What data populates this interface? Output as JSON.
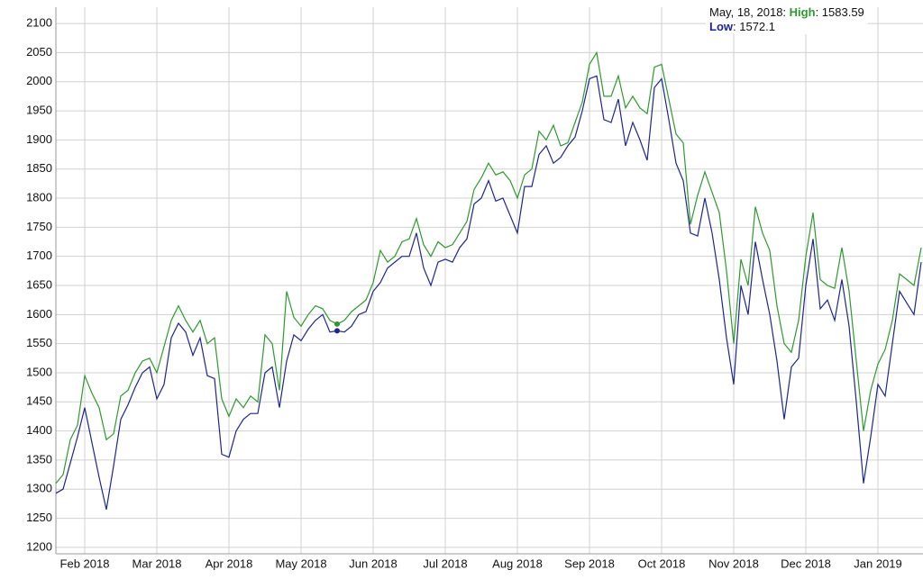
{
  "chart_data": {
    "type": "line",
    "categories": [
      null,
      null,
      null,
      null,
      "Feb 2018",
      null,
      null,
      null,
      null,
      null,
      null,
      null,
      null,
      null,
      "Mar 2018",
      null,
      null,
      null,
      null,
      null,
      null,
      null,
      null,
      null,
      "Apr 2018",
      null,
      null,
      null,
      null,
      null,
      null,
      null,
      null,
      null,
      "May 2018",
      null,
      null,
      null,
      null,
      null,
      null,
      null,
      null,
      null,
      "Jun 2018",
      null,
      null,
      null,
      null,
      null,
      null,
      null,
      null,
      null,
      "Jul 2018",
      null,
      null,
      null,
      null,
      null,
      null,
      null,
      null,
      null,
      "Aug 2018",
      null,
      null,
      null,
      null,
      null,
      null,
      null,
      null,
      null,
      "Sep 2018",
      null,
      null,
      null,
      null,
      null,
      null,
      null,
      null,
      null,
      "Oct 2018",
      null,
      null,
      null,
      null,
      null,
      null,
      null,
      null,
      null,
      "Nov 2018",
      null,
      null,
      null,
      null,
      null,
      null,
      null,
      null,
      null,
      "Dec 2018",
      null,
      null,
      null,
      null,
      null,
      null,
      null,
      null,
      null,
      "Jan 2019",
      null,
      null,
      null,
      null,
      null,
      null
    ],
    "series": [
      {
        "name": "High",
        "color": "#2e9a2e",
        "values": [
          1310,
          1325,
          1385,
          1410,
          1495,
          1465,
          1440,
          1385,
          1395,
          1460,
          1470,
          1500,
          1520,
          1525,
          1500,
          1545,
          1590,
          1615,
          1590,
          1570,
          1590,
          1550,
          1560,
          1455,
          1425,
          1455,
          1440,
          1460,
          1450,
          1565,
          1550,
          1470,
          1640,
          1595,
          1580,
          1600,
          1615,
          1610,
          1590,
          1583.59,
          1590,
          1605,
          1615,
          1625,
          1655,
          1710,
          1690,
          1700,
          1725,
          1730,
          1765,
          1720,
          1700,
          1725,
          1715,
          1720,
          1740,
          1760,
          1815,
          1835,
          1860,
          1840,
          1845,
          1830,
          1800,
          1840,
          1850,
          1915,
          1900,
          1925,
          1890,
          1895,
          1930,
          1965,
          2030,
          2050,
          1975,
          1975,
          2010,
          1955,
          1975,
          1955,
          1945,
          2025,
          2030,
          1970,
          1910,
          1895,
          1755,
          1805,
          1845,
          1810,
          1775,
          1675,
          1550,
          1695,
          1650,
          1785,
          1740,
          1710,
          1615,
          1550,
          1535,
          1590,
          1700,
          1775,
          1660,
          1650,
          1645,
          1715,
          1640,
          1520,
          1400,
          1470,
          1515,
          1540,
          1590,
          1670,
          1660,
          1650,
          1715
        ]
      },
      {
        "name": "Low",
        "color": "#1c2690",
        "values": [
          1293,
          1300,
          1345,
          1390,
          1440,
          1380,
          1320,
          1265,
          1340,
          1420,
          1445,
          1475,
          1500,
          1510,
          1455,
          1480,
          1560,
          1585,
          1570,
          1530,
          1560,
          1495,
          1490,
          1360,
          1355,
          1400,
          1420,
          1430,
          1430,
          1500,
          1510,
          1440,
          1520,
          1565,
          1555,
          1575,
          1590,
          1600,
          1570,
          1572.1,
          1570,
          1580,
          1600,
          1605,
          1640,
          1655,
          1680,
          1690,
          1700,
          1700,
          1740,
          1680,
          1650,
          1690,
          1695,
          1690,
          1715,
          1730,
          1790,
          1800,
          1830,
          1795,
          1800,
          1770,
          1740,
          1820,
          1820,
          1875,
          1890,
          1860,
          1870,
          1890,
          1905,
          1950,
          2005,
          2010,
          1935,
          1930,
          1970,
          1890,
          1930,
          1900,
          1865,
          1990,
          2005,
          1935,
          1860,
          1830,
          1740,
          1735,
          1800,
          1740,
          1660,
          1560,
          1480,
          1650,
          1600,
          1725,
          1660,
          1600,
          1520,
          1420,
          1510,
          1525,
          1650,
          1730,
          1610,
          1625,
          1590,
          1660,
          1580,
          1450,
          1310,
          1390,
          1480,
          1460,
          1550,
          1640,
          1620,
          1600,
          1690
        ]
      }
    ],
    "ylim": [
      1189,
      2128
    ],
    "yticks": [
      1200,
      1250,
      1300,
      1350,
      1400,
      1450,
      1500,
      1550,
      1600,
      1650,
      1700,
      1750,
      1800,
      1850,
      1900,
      1950,
      2000,
      2050,
      2100
    ],
    "grid": true,
    "tooltip": {
      "date": "May, 18, 2018:",
      "index": 39
    }
  }
}
